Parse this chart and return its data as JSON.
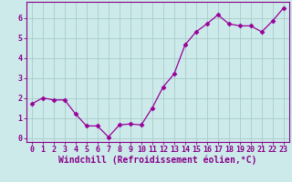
{
  "x": [
    0,
    1,
    2,
    3,
    4,
    5,
    6,
    7,
    8,
    9,
    10,
    11,
    12,
    13,
    14,
    15,
    16,
    17,
    18,
    19,
    20,
    21,
    22,
    23
  ],
  "y": [
    1.7,
    2.0,
    1.9,
    1.9,
    1.2,
    0.6,
    0.6,
    0.05,
    0.65,
    0.7,
    0.65,
    1.5,
    2.55,
    3.2,
    4.65,
    5.3,
    5.7,
    6.15,
    5.7,
    5.6,
    5.6,
    5.3,
    5.85,
    6.5
  ],
  "line_color": "#990099",
  "marker": "D",
  "markersize": 2.5,
  "bg_color": "#cceaea",
  "grid_color": "#aacccc",
  "axis_color": "#880088",
  "xlabel": "Windchill (Refroidissement éolien,°C)",
  "ylim": [
    -0.2,
    6.8
  ],
  "xlim": [
    -0.5,
    23.5
  ],
  "yticks": [
    0,
    1,
    2,
    3,
    4,
    5,
    6
  ],
  "xticks": [
    0,
    1,
    2,
    3,
    4,
    5,
    6,
    7,
    8,
    9,
    10,
    11,
    12,
    13,
    14,
    15,
    16,
    17,
    18,
    19,
    20,
    21,
    22,
    23
  ],
  "tick_fontsize": 6.0,
  "xlabel_fontsize": 7.0
}
